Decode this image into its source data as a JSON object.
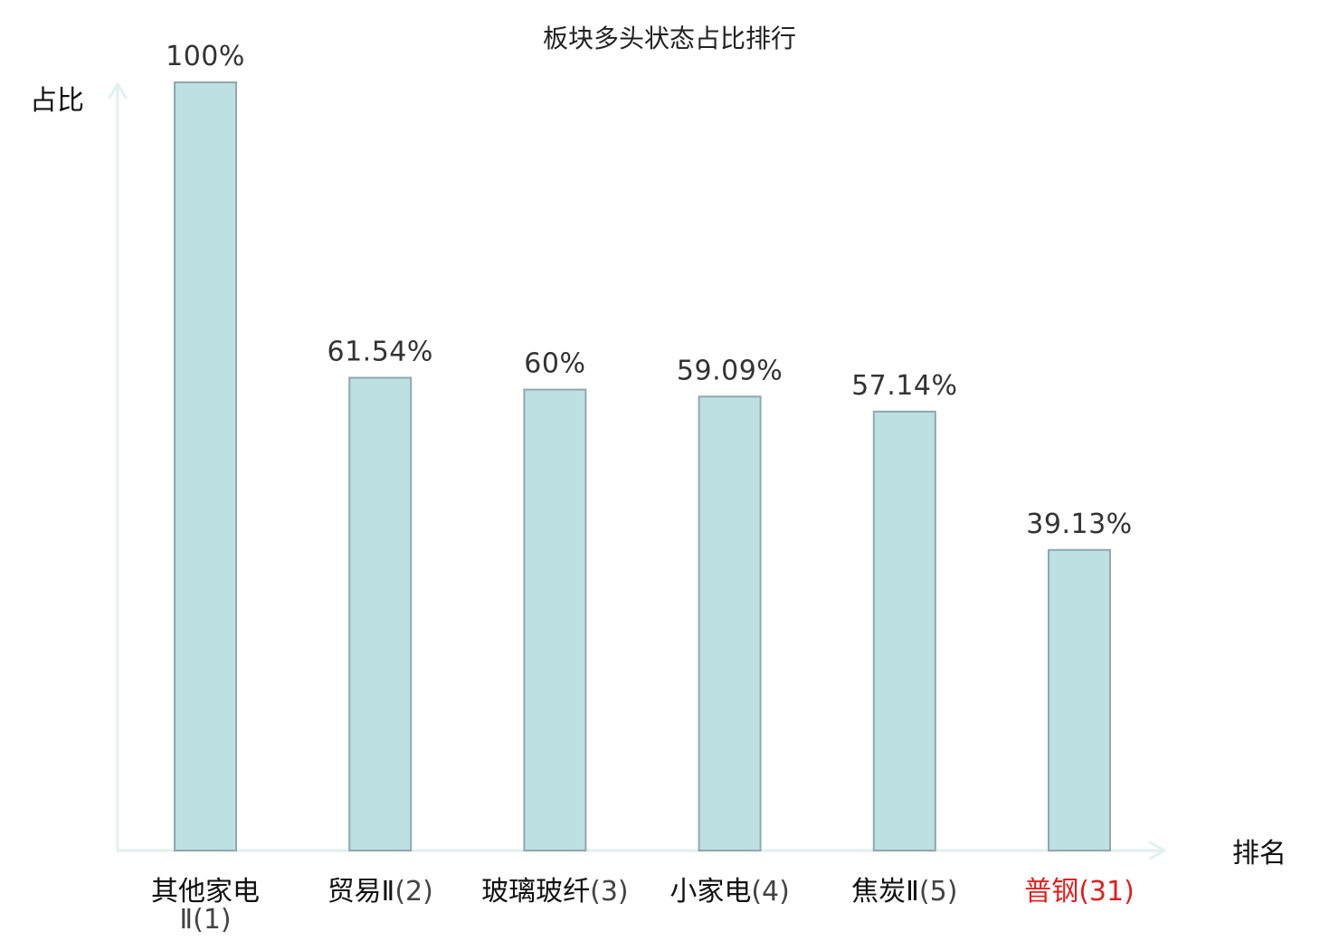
{
  "chart_data": {
    "type": "bar",
    "title": "板块多头状态占比排行",
    "ylabel": "占比",
    "xlabel": "排名",
    "ylim": [
      0,
      100
    ],
    "grid": false,
    "legend": "none",
    "categories": [
      {
        "name": "其他家电Ⅱ",
        "rank": "(1)",
        "highlight": false
      },
      {
        "name": "贸易Ⅱ",
        "rank": "(2)",
        "highlight": false
      },
      {
        "name": "玻璃玻纤",
        "rank": "(3)",
        "highlight": false
      },
      {
        "name": "小家电",
        "rank": "(4)",
        "highlight": false
      },
      {
        "name": "焦炭Ⅱ",
        "rank": "(5)",
        "highlight": false
      },
      {
        "name": "普钢",
        "rank": "(31)",
        "highlight": true
      }
    ],
    "values": [
      100,
      61.54,
      60,
      59.09,
      57.14,
      39.13
    ],
    "value_labels": [
      "100%",
      "61.54%",
      "60%",
      "59.09%",
      "57.14%",
      "39.13%"
    ],
    "colors": {
      "bar_fill": "#bde0e3",
      "bar_stroke": "#8fa9ad",
      "axis": "#e0f1ee",
      "highlight_text": "#e02020",
      "rank_text": "#444444",
      "label_text": "#111111"
    }
  }
}
